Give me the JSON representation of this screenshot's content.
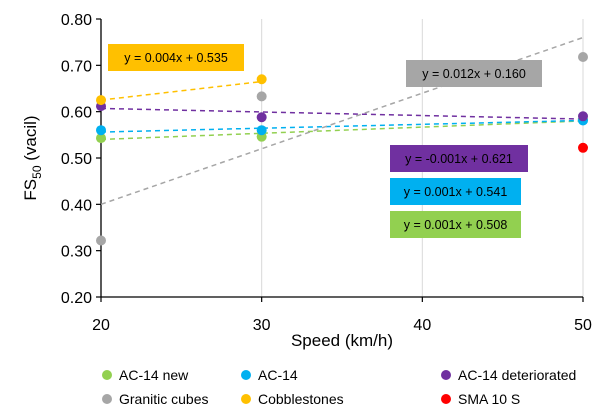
{
  "chart_data": {
    "type": "scatter",
    "xlabel": "Speed (km/h)",
    "ylabel": "FS",
    "ylabel_subscript": "50",
    "ylabel_suffix": " (vacil)",
    "xlim": [
      20,
      50
    ],
    "ylim": [
      0.2,
      0.8
    ],
    "x_ticks": [
      20,
      30,
      40,
      50
    ],
    "y_ticks": [
      0.2,
      0.3,
      0.4,
      0.5,
      0.6,
      0.7,
      0.8
    ],
    "y_tick_labels": [
      "0.20",
      "0.30",
      "0.40",
      "0.50",
      "0.60",
      "0.70",
      "0.80"
    ],
    "grid": "vertical",
    "legend_position": "bottom",
    "series": [
      {
        "name": "AC-14 new",
        "color": "#92d050",
        "points": [
          [
            20,
            0.543
          ],
          [
            30,
            0.546
          ],
          [
            50,
            0.583
          ]
        ],
        "trend": {
          "x": [
            20,
            50
          ],
          "y": [
            0.54,
            0.58
          ]
        }
      },
      {
        "name": "AC-14",
        "color": "#00b0f0",
        "points": [
          [
            20,
            0.56
          ],
          [
            30,
            0.56
          ],
          [
            50,
            0.581
          ]
        ],
        "trend": {
          "x": [
            20,
            50
          ],
          "y": [
            0.556,
            0.581
          ]
        }
      },
      {
        "name": "AC-14 deteriorated",
        "color": "#7030a0",
        "points": [
          [
            20,
            0.612
          ],
          [
            30,
            0.588
          ],
          [
            50,
            0.59
          ]
        ],
        "trend": {
          "x": [
            20,
            50
          ],
          "y": [
            0.607,
            0.584
          ]
        }
      },
      {
        "name": "Granitic cubes",
        "color": "#a6a6a6",
        "points": [
          [
            20,
            0.322
          ],
          [
            30,
            0.633
          ],
          [
            50,
            0.718
          ]
        ],
        "trend": {
          "x": [
            20,
            50
          ],
          "y": [
            0.4,
            0.76
          ]
        }
      },
      {
        "name": "Cobblestones",
        "color": "#ffc000",
        "points": [
          [
            20,
            0.625
          ],
          [
            30,
            0.67
          ]
        ],
        "trend": {
          "x": [
            20,
            30
          ],
          "y": [
            0.625,
            0.665
          ]
        }
      },
      {
        "name": "SMA 10 S",
        "color": "#ff0000",
        "points": [
          [
            50,
            0.522
          ]
        ]
      }
    ],
    "annotations": [
      {
        "text": "y = 0.004x + 0.535",
        "bg": "#ffc000",
        "series": "Cobblestones"
      },
      {
        "text": "y = 0.012x + 0.160",
        "bg": "#a6a6a6",
        "series": "Granitic cubes"
      },
      {
        "text": "y = -0.001x + 0.621",
        "bg": "#7030a0",
        "series": "AC-14 deteriorated"
      },
      {
        "text": "y = 0.001x + 0.541",
        "bg": "#00b0f0",
        "series": "AC-14"
      },
      {
        "text": "y = 0.001x + 0.508",
        "bg": "#92d050",
        "series": "AC-14 new"
      }
    ],
    "legend": [
      {
        "label": "AC-14 new",
        "color": "#92d050"
      },
      {
        "label": "AC-14",
        "color": "#00b0f0"
      },
      {
        "label": "AC-14 deteriorated",
        "color": "#7030a0"
      },
      {
        "label": "Granitic cubes",
        "color": "#a6a6a6"
      },
      {
        "label": "Cobblestones",
        "color": "#ffc000"
      },
      {
        "label": "SMA 10 S",
        "color": "#ff0000"
      }
    ]
  }
}
